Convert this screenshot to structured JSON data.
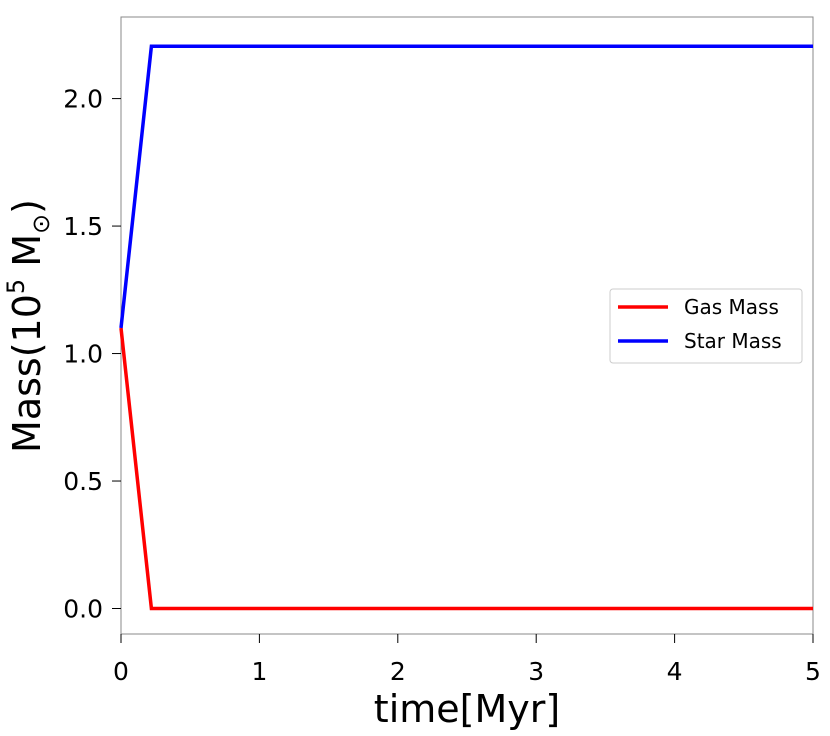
{
  "chart_data": {
    "type": "line",
    "xlabel": "time[Myr]",
    "ylabel_main": "Mass(10",
    "ylabel_sup": "5",
    "ylabel_tail": " M",
    "ylabel_sub": "⊙",
    "ylabel_close": ")",
    "xlim": [
      0,
      5
    ],
    "ylim": [
      -0.1,
      2.32
    ],
    "x_ticks": [
      "0",
      "1",
      "2",
      "3",
      "4",
      "5"
    ],
    "y_ticks": [
      "0.0",
      "0.5",
      "1.0",
      "1.5",
      "2.0"
    ],
    "x_tick_values": [
      0,
      1,
      2,
      3,
      4,
      5
    ],
    "y_tick_values": [
      0.0,
      0.5,
      1.0,
      1.5,
      2.0
    ],
    "grid": false,
    "legend_position": "center-right",
    "series": [
      {
        "name": "Gas Mass",
        "color": "#ff0000",
        "x": [
          0,
          0.22,
          5
        ],
        "y": [
          1.1,
          0.0,
          0.0
        ]
      },
      {
        "name": "Star Mass",
        "color": "#0000ff",
        "x": [
          0,
          0.22,
          5
        ],
        "y": [
          1.1,
          2.205,
          2.205
        ]
      }
    ]
  }
}
